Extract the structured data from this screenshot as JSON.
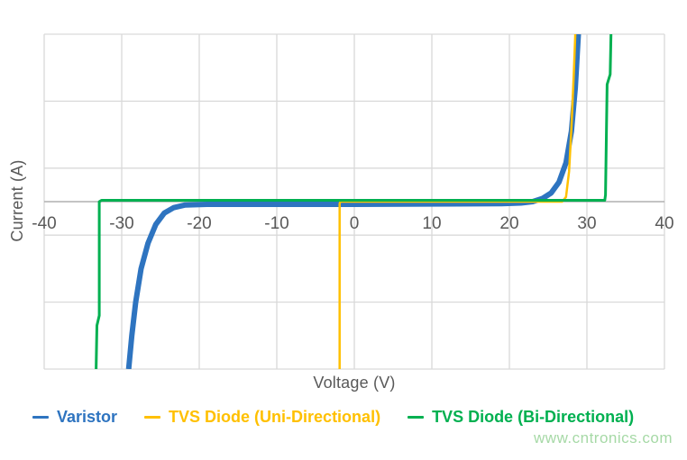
{
  "page": {
    "background": "#ffffff"
  },
  "axes": {
    "x_title": "Voltage (V)",
    "y_title": "Current (A)",
    "tick_color": "#595959",
    "grid_color": "#d9d9d9",
    "axis_line_color": "#b0b0b0"
  },
  "chart_data": {
    "type": "line",
    "title": "",
    "xlabel": "Voltage (V)",
    "ylabel": "Current (A)",
    "xlim": [
      -40,
      40
    ],
    "ylim": [
      -2.5,
      2.5
    ],
    "xticks": [
      -40,
      -30,
      -20,
      -10,
      0,
      10,
      20,
      30,
      40
    ],
    "ygrid": [
      -2.5,
      -1.5,
      -0.5,
      0.5,
      1.5,
      2.5
    ],
    "y_tick_labels_shown": false,
    "grid": true,
    "legend_position": "bottom",
    "series": [
      {
        "name": "Varistor",
        "color": "#2E74C0",
        "line_width": 6,
        "points": [
          [
            -29.1,
            -2.5
          ],
          [
            -28.7,
            -2.0
          ],
          [
            -28.2,
            -1.5
          ],
          [
            -27.5,
            -1.0
          ],
          [
            -26.6,
            -0.62
          ],
          [
            -25.6,
            -0.34
          ],
          [
            -24.5,
            -0.17
          ],
          [
            -23.3,
            -0.09
          ],
          [
            -21.8,
            -0.05
          ],
          [
            -19.0,
            -0.04
          ],
          [
            -10.0,
            -0.04
          ],
          [
            0.0,
            -0.04
          ],
          [
            10.0,
            -0.035
          ],
          [
            19.0,
            -0.03
          ],
          [
            21.5,
            -0.02
          ],
          [
            23.0,
            0.0
          ],
          [
            24.3,
            0.05
          ],
          [
            25.4,
            0.13
          ],
          [
            26.4,
            0.29
          ],
          [
            27.3,
            0.58
          ],
          [
            28.0,
            1.05
          ],
          [
            28.5,
            1.7
          ],
          [
            28.9,
            2.5
          ]
        ]
      },
      {
        "name": "TVS Diode (Uni-Directional)",
        "color": "#FFC000",
        "line_width": 2.5,
        "points": [
          [
            -1.9,
            -2.5
          ],
          [
            -1.9,
            -0.03
          ],
          [
            -1.8,
            0.0
          ],
          [
            26.8,
            0.0
          ],
          [
            27.3,
            0.07
          ],
          [
            27.7,
            0.45
          ],
          [
            28.0,
            1.1
          ],
          [
            28.3,
            1.9
          ],
          [
            28.5,
            2.5
          ]
        ]
      },
      {
        "name": "TVS Diode (Bi-Directional)",
        "color": "#00B050",
        "line_width": 3,
        "points": [
          [
            -33.3,
            -2.5
          ],
          [
            -33.2,
            -1.85
          ],
          [
            -32.9,
            -1.7
          ],
          [
            -32.9,
            0.0
          ],
          [
            -32.6,
            0.02
          ],
          [
            32.3,
            0.02
          ],
          [
            32.4,
            0.1
          ],
          [
            32.6,
            1.75
          ],
          [
            33.0,
            1.9
          ],
          [
            33.1,
            2.5
          ]
        ]
      }
    ]
  },
  "watermark": {
    "text": "www.cntronics.com",
    "color": "#a6d9a6"
  }
}
